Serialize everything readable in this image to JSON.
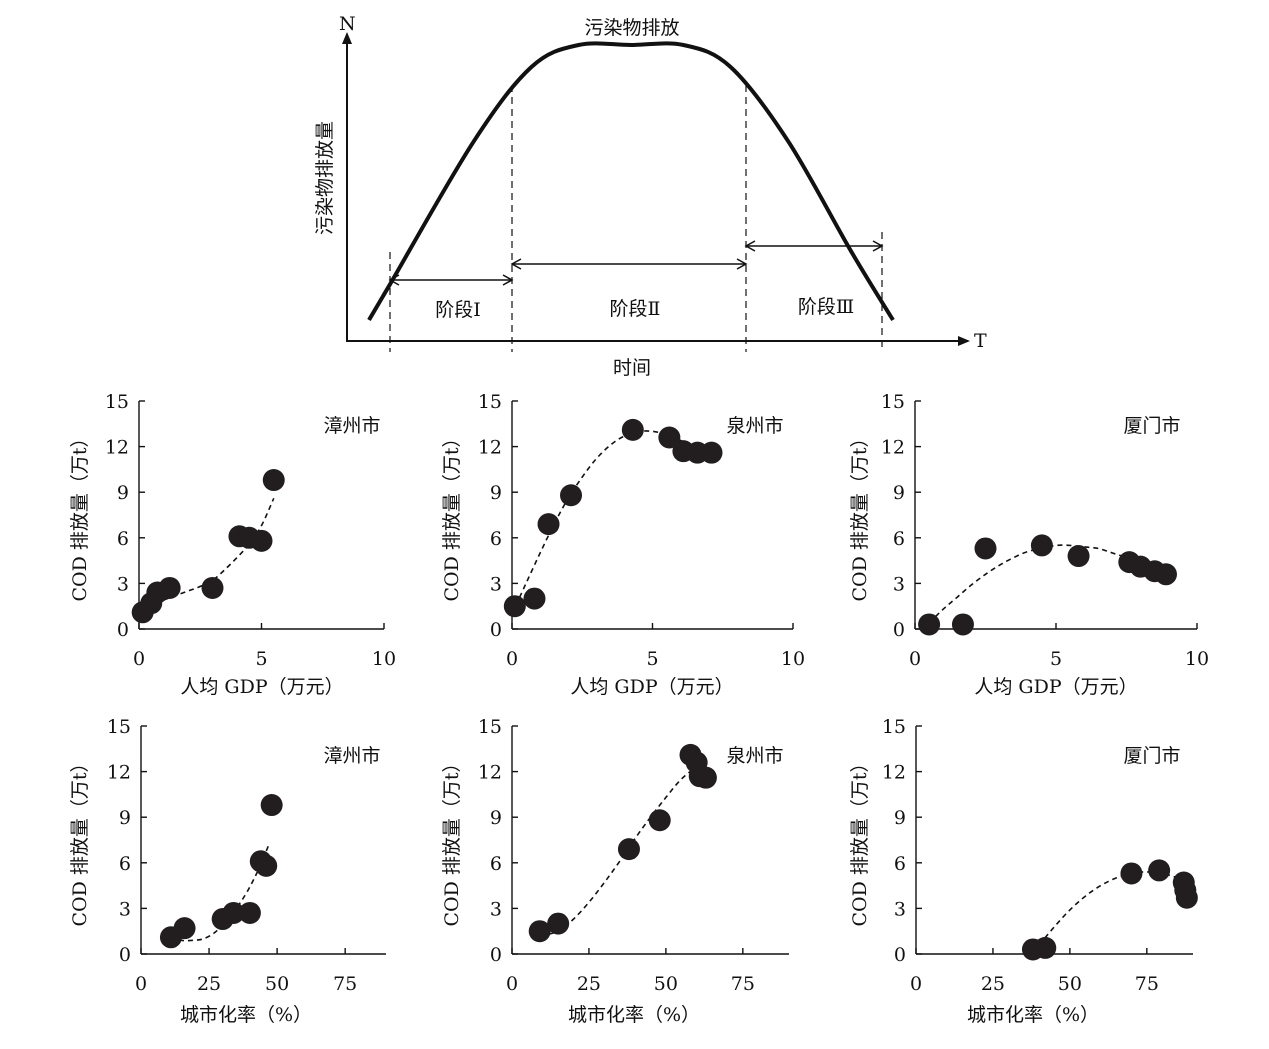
{
  "chart_data": [
    {
      "type": "line",
      "title": "污染物排放",
      "xlabel": "时间",
      "ylabel": "污染物排放量",
      "x_axis_letter": "T",
      "y_axis_letter": "N",
      "stages": [
        {
          "label": "阶段Ⅰ"
        },
        {
          "label": "阶段Ⅱ"
        },
        {
          "label": "阶段Ⅲ"
        }
      ],
      "series": [
        {
          "x": [
            0.0,
            0.04,
            0.2,
            0.31,
            0.4,
            0.5,
            0.6,
            0.69,
            0.8,
            0.92,
            1.0
          ],
          "y": [
            0.0,
            0.13,
            0.65,
            0.92,
            1.0,
            1.0,
            1.0,
            0.92,
            0.65,
            0.25,
            0.0
          ]
        }
      ]
    },
    {
      "type": "scatter",
      "title": "漳州市",
      "xlabel": "人均 GDP（万元）",
      "ylabel": "COD 排放量（万t）",
      "xlim": [
        0,
        10
      ],
      "ylim": [
        0,
        15
      ],
      "xticks": [
        "0",
        "5",
        "10"
      ],
      "yticks": [
        "0",
        "3",
        "6",
        "9",
        "12",
        "15"
      ],
      "points": {
        "x": [
          0.15,
          0.5,
          0.75,
          1.25,
          3.0,
          4.1,
          4.5,
          5.0,
          5.5
        ],
        "y": [
          1.1,
          1.7,
          2.4,
          2.7,
          2.7,
          6.1,
          6.0,
          5.8,
          9.8
        ]
      },
      "fit": {
        "x": [
          0.0,
          0.5,
          1.0,
          1.5,
          2.0,
          2.5,
          3.0,
          3.5,
          4.0,
          4.5,
          5.0,
          5.5
        ],
        "y": [
          1.2,
          1.6,
          1.9,
          2.2,
          2.5,
          2.8,
          3.2,
          3.9,
          4.7,
          5.6,
          6.8,
          8.6
        ]
      }
    },
    {
      "type": "scatter",
      "title": "泉州市",
      "xlabel": "人均 GDP（万元）",
      "ylabel": "COD 排放量（万t）",
      "xlim": [
        0,
        10
      ],
      "ylim": [
        0,
        15
      ],
      "xticks": [
        "0",
        "5",
        "10"
      ],
      "yticks": [
        "0",
        "3",
        "6",
        "9",
        "12",
        "15"
      ],
      "points": {
        "x": [
          0.1,
          0.8,
          1.3,
          2.1,
          4.3,
          5.6,
          6.1,
          6.6,
          7.1
        ],
        "y": [
          1.5,
          2.0,
          6.9,
          8.8,
          13.1,
          12.6,
          11.7,
          11.6,
          11.6
        ]
      },
      "fit": {
        "x": [
          0.0,
          0.5,
          1.0,
          1.5,
          2.0,
          2.5,
          3.0,
          3.5,
          4.0,
          4.5,
          5.0,
          5.5,
          6.0,
          6.5,
          7.0
        ],
        "y": [
          1.0,
          3.0,
          5.0,
          6.9,
          8.6,
          10.0,
          11.2,
          12.1,
          12.7,
          13.0,
          13.0,
          12.8,
          12.4,
          12.0,
          11.5
        ]
      }
    },
    {
      "type": "scatter",
      "title": "厦门市",
      "xlabel": "人均 GDP（万元）",
      "ylabel": "COD 排放量（万t）",
      "xlim": [
        0,
        10
      ],
      "ylim": [
        0,
        15
      ],
      "xticks": [
        "0",
        "5",
        "10"
      ],
      "yticks": [
        "0",
        "3",
        "6",
        "9",
        "12",
        "15"
      ],
      "points": {
        "x": [
          0.5,
          1.7,
          2.5,
          4.5,
          5.8,
          7.6,
          8.0,
          8.5,
          8.9
        ],
        "y": [
          0.3,
          0.3,
          5.3,
          5.5,
          4.8,
          4.4,
          4.1,
          3.8,
          3.6
        ]
      },
      "fit": {
        "x": [
          0.5,
          1.0,
          1.5,
          2.0,
          2.5,
          3.0,
          3.5,
          4.0,
          4.5,
          5.0,
          5.5,
          6.0,
          6.5,
          7.0,
          7.5,
          8.0,
          8.5,
          9.0
        ],
        "y": [
          0.4,
          1.3,
          2.1,
          2.9,
          3.6,
          4.2,
          4.7,
          5.1,
          5.3,
          5.5,
          5.5,
          5.4,
          5.3,
          5.0,
          4.7,
          4.4,
          4.0,
          3.6
        ]
      }
    },
    {
      "type": "scatter",
      "title": "漳州市",
      "xlabel": "城市化率（%）",
      "ylabel": "COD 排放量（万t）",
      "xlim": [
        0,
        90
      ],
      "ylim": [
        0,
        15
      ],
      "xticks": [
        "0",
        "25",
        "50",
        "75"
      ],
      "yticks": [
        "0",
        "3",
        "6",
        "9",
        "12",
        "15"
      ],
      "points": {
        "x": [
          11,
          16,
          30,
          34,
          40,
          44,
          46,
          48
        ],
        "y": [
          1.1,
          1.7,
          2.3,
          2.7,
          2.7,
          6.1,
          5.8,
          9.8
        ]
      },
      "fit": {
        "x": [
          11,
          15,
          19,
          23,
          27,
          31,
          35,
          39,
          43,
          47
        ],
        "y": [
          1.2,
          0.9,
          0.9,
          1.0,
          1.4,
          2.1,
          3.0,
          4.1,
          5.5,
          7.2
        ]
      }
    },
    {
      "type": "scatter",
      "title": "泉州市",
      "xlabel": "城市化率（%）",
      "ylabel": "COD 排放量（万t）",
      "xlim": [
        0,
        90
      ],
      "ylim": [
        0,
        15
      ],
      "xticks": [
        "0",
        "25",
        "50",
        "75"
      ],
      "yticks": [
        "0",
        "3",
        "6",
        "9",
        "12",
        "15"
      ],
      "points": {
        "x": [
          9,
          15,
          38,
          48,
          58,
          60,
          61,
          63
        ],
        "y": [
          1.5,
          2.0,
          6.9,
          8.8,
          13.1,
          12.6,
          11.7,
          11.6
        ]
      },
      "fit": {
        "x": [
          9,
          15,
          20,
          25,
          30,
          35,
          40,
          45,
          50,
          55,
          60,
          63
        ],
        "y": [
          1.2,
          1.5,
          2.3,
          3.4,
          4.7,
          6.1,
          7.6,
          9.0,
          10.3,
          11.5,
          12.3,
          12.6
        ]
      }
    },
    {
      "type": "scatter",
      "title": "厦门市",
      "xlabel": "城市化率（%）",
      "ylabel": "COD 排放量（万t）",
      "xlim": [
        0,
        90
      ],
      "ylim": [
        0,
        15
      ],
      "xticks": [
        "0",
        "25",
        "50",
        "75"
      ],
      "yticks": [
        "0",
        "3",
        "6",
        "9",
        "12",
        "15"
      ],
      "points": {
        "x": [
          38,
          42,
          70,
          79,
          87,
          87.5,
          88
        ],
        "y": [
          0.3,
          0.4,
          5.3,
          5.5,
          4.7,
          4.2,
          3.7
        ]
      },
      "fit": {
        "x": [
          40,
          45,
          50,
          55,
          60,
          65,
          70,
          75,
          80,
          85,
          88
        ],
        "y": [
          0.6,
          1.8,
          2.9,
          3.8,
          4.5,
          5.0,
          5.3,
          5.4,
          5.3,
          5.0,
          4.6
        ]
      }
    }
  ]
}
